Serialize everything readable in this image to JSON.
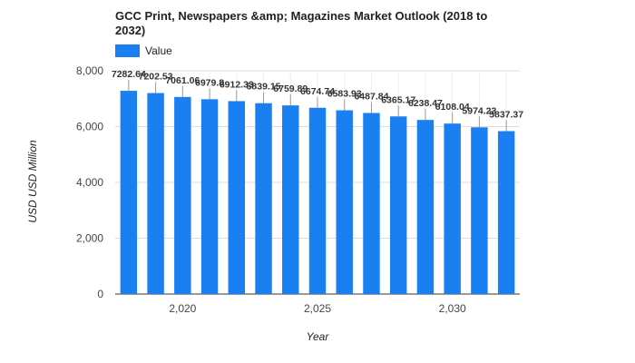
{
  "chart_data": {
    "type": "bar",
    "title": "GCC Print, Newspapers &amp; Magazines Market Outlook (2018 to 2032)",
    "xlabel": "Year",
    "ylabel": "USD USD Million",
    "categories": [
      2018,
      2019,
      2020,
      2021,
      2022,
      2023,
      2024,
      2025,
      2026,
      2027,
      2028,
      2029,
      2030,
      2031,
      2032
    ],
    "series": [
      {
        "name": "Value",
        "color": "#1a7ff0",
        "values": [
          7282.64,
          7202.53,
          7061.06,
          6979.8,
          6912.33,
          6839.15,
          6759.89,
          6674.74,
          6583.93,
          6487.84,
          6365.17,
          6238.47,
          6108.04,
          5974.23,
          5837.37
        ],
        "labels": [
          "7282.64",
          "7202.53",
          "7061.06",
          "6979.8",
          "6912.33",
          "6839.15",
          "6759.89",
          "6674.74",
          "6583.93",
          "6487.84",
          "6365.17",
          "6238.47",
          "6108.04",
          "5974.23",
          "5837.37"
        ]
      }
    ],
    "ylim": [
      0,
      8000
    ],
    "yticks": [
      0,
      2000,
      4000,
      6000,
      8000
    ],
    "ytick_labels": [
      "0",
      "2,000",
      "4,000",
      "6,000",
      "8,000"
    ],
    "xticks": [
      2020,
      2025,
      2030
    ],
    "xtick_labels": [
      "2,020",
      "2,025",
      "2,030"
    ],
    "grid": true,
    "legend": "top-left"
  }
}
